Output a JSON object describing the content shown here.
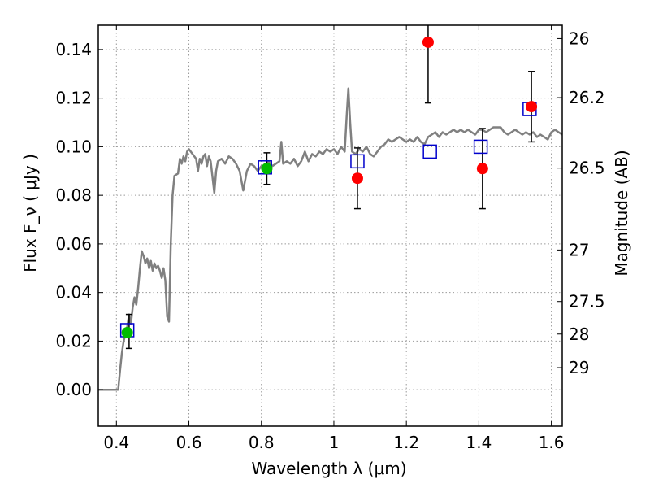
{
  "chart_data": {
    "type": "scatter",
    "xlabel": "Wavelength  λ (μm)",
    "ylabel_left": "Flux  F_ν  ( μJy )",
    "ylabel_right": "Magnitude (AB)",
    "xlim": [
      0.35,
      1.63
    ],
    "ylim": [
      -0.015,
      0.15
    ],
    "x_ticks": [
      0.4,
      0.6,
      0.8,
      1.0,
      1.2,
      1.4,
      1.6
    ],
    "x_tick_labels": [
      "0.4",
      "0.6",
      "0.8",
      "1",
      "1.2",
      "1.4",
      "1.6"
    ],
    "y_ticks": [
      0.0,
      0.02,
      0.04,
      0.06,
      0.08,
      0.1,
      0.12,
      0.14
    ],
    "y_tick_labels": [
      "0.00",
      "0.02",
      "0.04",
      "0.06",
      "0.08",
      "0.10",
      "0.12",
      "0.14"
    ],
    "right_ticks": [
      {
        "label": "26",
        "flux": 0.1445
      },
      {
        "label": "26.2",
        "flux": 0.1202
      },
      {
        "label": "26.5",
        "flux": 0.0912
      },
      {
        "label": "27",
        "flux": 0.0575
      },
      {
        "label": "27.5",
        "flux": 0.0363
      },
      {
        "label": "28",
        "flux": 0.0229
      },
      {
        "label": "29",
        "flux": 0.0091
      }
    ],
    "grid": true,
    "colors": {
      "model": "#808080",
      "observed": "#ff0000",
      "other": "#00bb00",
      "synthetic": "#0000cc",
      "errorbar": "#000000"
    },
    "series": [
      {
        "kind": "line",
        "points": [
          [
            0.35,
            0.0
          ],
          [
            0.4,
            0.0
          ],
          [
            0.405,
            0.0
          ],
          [
            0.41,
            0.008
          ],
          [
            0.415,
            0.015
          ],
          [
            0.42,
            0.02
          ],
          [
            0.43,
            0.026
          ],
          [
            0.435,
            0.031
          ],
          [
            0.44,
            0.027
          ],
          [
            0.445,
            0.034
          ],
          [
            0.45,
            0.038
          ],
          [
            0.455,
            0.035
          ],
          [
            0.46,
            0.042
          ],
          [
            0.465,
            0.05
          ],
          [
            0.47,
            0.057
          ],
          [
            0.475,
            0.055
          ],
          [
            0.48,
            0.052
          ],
          [
            0.485,
            0.054
          ],
          [
            0.49,
            0.05
          ],
          [
            0.495,
            0.053
          ],
          [
            0.5,
            0.049
          ],
          [
            0.505,
            0.052
          ],
          [
            0.51,
            0.05
          ],
          [
            0.515,
            0.051
          ],
          [
            0.52,
            0.049
          ],
          [
            0.525,
            0.046
          ],
          [
            0.53,
            0.05
          ],
          [
            0.535,
            0.045
          ],
          [
            0.54,
            0.03
          ],
          [
            0.545,
            0.028
          ],
          [
            0.55,
            0.06
          ],
          [
            0.555,
            0.08
          ],
          [
            0.56,
            0.088
          ],
          [
            0.57,
            0.089
          ],
          [
            0.575,
            0.095
          ],
          [
            0.58,
            0.093
          ],
          [
            0.585,
            0.096
          ],
          [
            0.59,
            0.094
          ],
          [
            0.595,
            0.098
          ],
          [
            0.6,
            0.099
          ],
          [
            0.61,
            0.097
          ],
          [
            0.62,
            0.095
          ],
          [
            0.625,
            0.09
          ],
          [
            0.63,
            0.095
          ],
          [
            0.635,
            0.093
          ],
          [
            0.64,
            0.096
          ],
          [
            0.645,
            0.097
          ],
          [
            0.65,
            0.092
          ],
          [
            0.655,
            0.096
          ],
          [
            0.66,
            0.094
          ],
          [
            0.67,
            0.081
          ],
          [
            0.675,
            0.09
          ],
          [
            0.68,
            0.094
          ],
          [
            0.69,
            0.095
          ],
          [
            0.7,
            0.093
          ],
          [
            0.71,
            0.096
          ],
          [
            0.72,
            0.095
          ],
          [
            0.73,
            0.093
          ],
          [
            0.74,
            0.09
          ],
          [
            0.75,
            0.082
          ],
          [
            0.76,
            0.09
          ],
          [
            0.77,
            0.093
          ],
          [
            0.78,
            0.092
          ],
          [
            0.79,
            0.09
          ],
          [
            0.8,
            0.092
          ],
          [
            0.81,
            0.091
          ],
          [
            0.82,
            0.094
          ],
          [
            0.83,
            0.092
          ],
          [
            0.84,
            0.093
          ],
          [
            0.85,
            0.094
          ],
          [
            0.855,
            0.102
          ],
          [
            0.86,
            0.093
          ],
          [
            0.87,
            0.094
          ],
          [
            0.88,
            0.093
          ],
          [
            0.89,
            0.095
          ],
          [
            0.9,
            0.092
          ],
          [
            0.91,
            0.094
          ],
          [
            0.92,
            0.098
          ],
          [
            0.93,
            0.094
          ],
          [
            0.94,
            0.097
          ],
          [
            0.95,
            0.096
          ],
          [
            0.96,
            0.098
          ],
          [
            0.97,
            0.097
          ],
          [
            0.98,
            0.099
          ],
          [
            0.99,
            0.098
          ],
          [
            1.0,
            0.099
          ],
          [
            1.01,
            0.097
          ],
          [
            1.02,
            0.1
          ],
          [
            1.03,
            0.098
          ],
          [
            1.035,
            0.112
          ],
          [
            1.04,
            0.124
          ],
          [
            1.045,
            0.11
          ],
          [
            1.05,
            0.098
          ],
          [
            1.06,
            0.097
          ],
          [
            1.07,
            0.099
          ],
          [
            1.08,
            0.098
          ],
          [
            1.09,
            0.1
          ],
          [
            1.1,
            0.097
          ],
          [
            1.11,
            0.096
          ],
          [
            1.12,
            0.098
          ],
          [
            1.13,
            0.1
          ],
          [
            1.14,
            0.101
          ],
          [
            1.15,
            0.103
          ],
          [
            1.16,
            0.102
          ],
          [
            1.17,
            0.103
          ],
          [
            1.18,
            0.104
          ],
          [
            1.19,
            0.103
          ],
          [
            1.2,
            0.102
          ],
          [
            1.21,
            0.103
          ],
          [
            1.22,
            0.102
          ],
          [
            1.23,
            0.104
          ],
          [
            1.24,
            0.102
          ],
          [
            1.25,
            0.101
          ],
          [
            1.26,
            0.104
          ],
          [
            1.27,
            0.105
          ],
          [
            1.28,
            0.106
          ],
          [
            1.29,
            0.104
          ],
          [
            1.3,
            0.106
          ],
          [
            1.31,
            0.105
          ],
          [
            1.32,
            0.106
          ],
          [
            1.33,
            0.107
          ],
          [
            1.34,
            0.106
          ],
          [
            1.35,
            0.107
          ],
          [
            1.36,
            0.106
          ],
          [
            1.37,
            0.107
          ],
          [
            1.38,
            0.106
          ],
          [
            1.39,
            0.105
          ],
          [
            1.4,
            0.107
          ],
          [
            1.41,
            0.107
          ],
          [
            1.42,
            0.106
          ],
          [
            1.43,
            0.107
          ],
          [
            1.44,
            0.108
          ],
          [
            1.45,
            0.108
          ],
          [
            1.46,
            0.108
          ],
          [
            1.47,
            0.106
          ],
          [
            1.48,
            0.105
          ],
          [
            1.49,
            0.106
          ],
          [
            1.5,
            0.107
          ],
          [
            1.51,
            0.106
          ],
          [
            1.52,
            0.105
          ],
          [
            1.53,
            0.106
          ],
          [
            1.54,
            0.105
          ],
          [
            1.55,
            0.106
          ],
          [
            1.56,
            0.104
          ],
          [
            1.57,
            0.105
          ],
          [
            1.58,
            0.104
          ],
          [
            1.59,
            0.103
          ],
          [
            1.6,
            0.106
          ],
          [
            1.61,
            0.107
          ],
          [
            1.62,
            0.106
          ],
          [
            1.63,
            0.105
          ]
        ]
      },
      {
        "kind": "error",
        "points": [
          {
            "x": 0.435,
            "y": 0.024,
            "err": 0.007
          },
          {
            "x": 0.815,
            "y": 0.091,
            "err": 0.0065
          },
          {
            "x": 1.065,
            "y": 0.087,
            "err": 0.0125
          },
          {
            "x": 1.26,
            "y": 0.143,
            "err": 0.025
          },
          {
            "x": 1.41,
            "y": 0.091,
            "err": 0.0165
          },
          {
            "x": 1.545,
            "y": 0.1165,
            "err": 0.0145
          }
        ]
      },
      {
        "kind": "open-square",
        "points": [
          [
            0.43,
            0.0245
          ],
          [
            0.81,
            0.0915
          ],
          [
            1.065,
            0.094
          ],
          [
            1.265,
            0.098
          ],
          [
            1.405,
            0.1
          ],
          [
            1.54,
            0.1155
          ]
        ]
      },
      {
        "kind": "green-circle",
        "points": [
          [
            0.43,
            0.0235
          ],
          [
            0.815,
            0.091
          ]
        ]
      },
      {
        "kind": "red-circle",
        "points": [
          [
            1.065,
            0.087
          ],
          [
            1.26,
            0.143
          ],
          [
            1.41,
            0.091
          ],
          [
            1.545,
            0.1165
          ]
        ]
      }
    ]
  }
}
